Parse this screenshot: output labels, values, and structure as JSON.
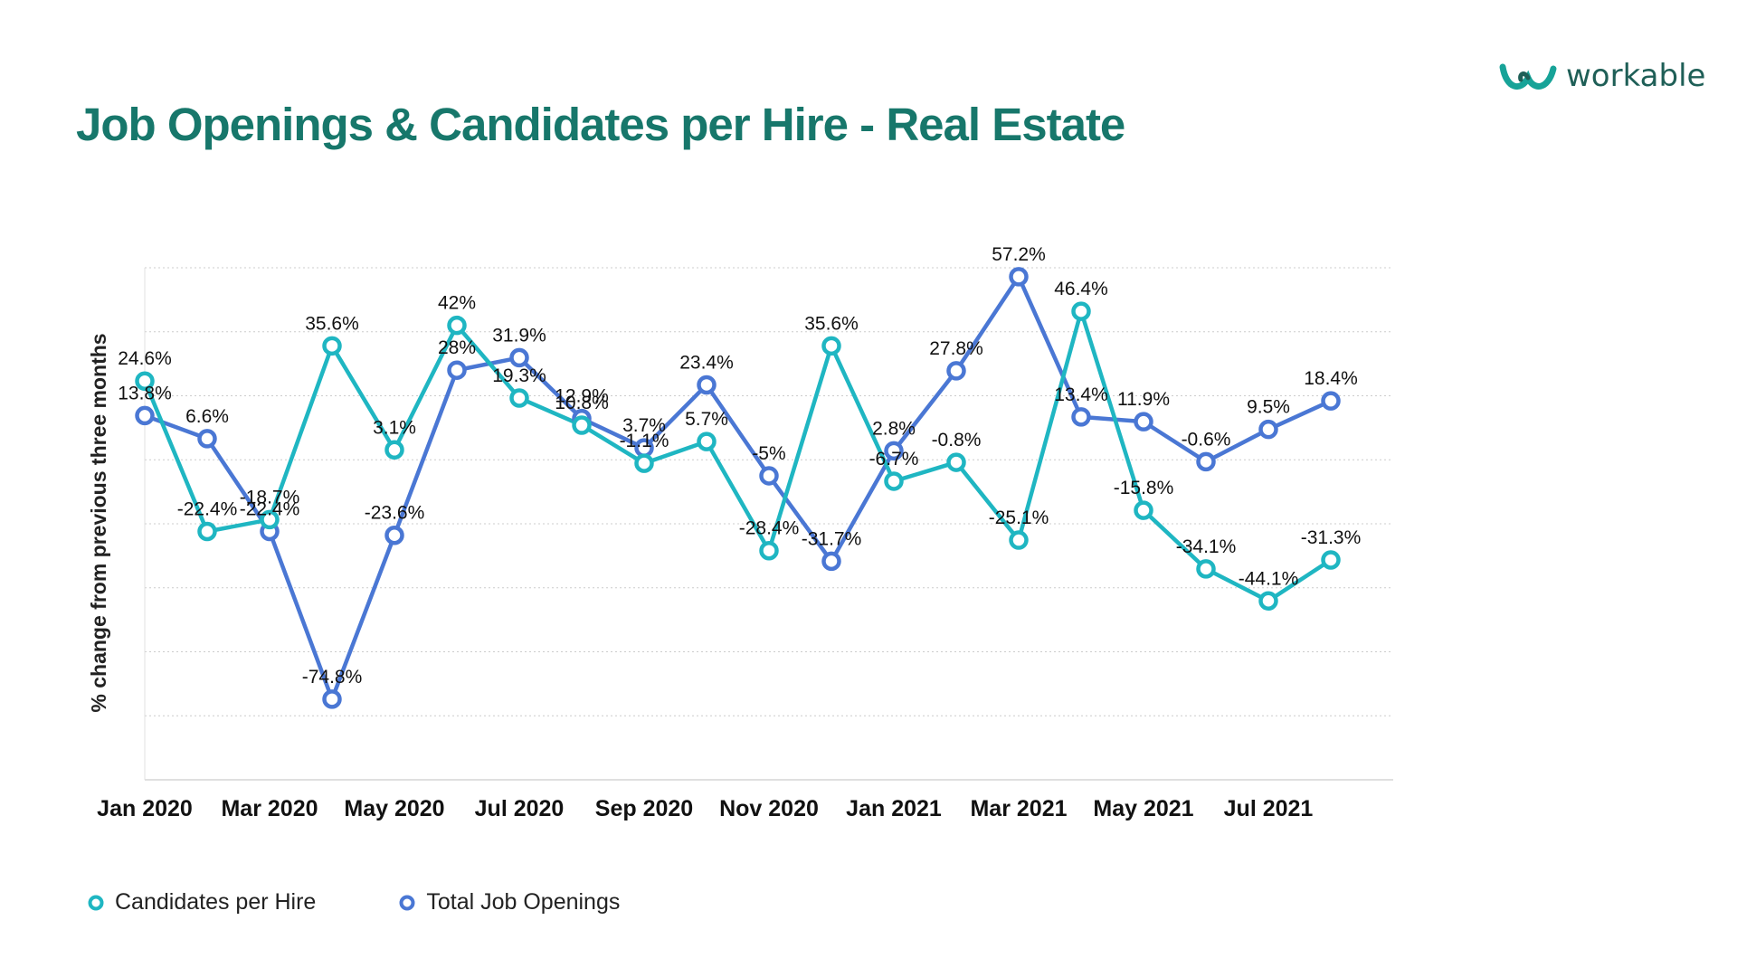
{
  "header": {
    "title": "Job Openings & Candidates per Hire - Real Estate",
    "logo_text": "workable",
    "logo_icon": "workable-logo-icon"
  },
  "colors": {
    "title": "#17776b",
    "candidates": "#1fb6c2",
    "openings": "#4a77d4",
    "grid": "#cccccc"
  },
  "chart_data": {
    "type": "line",
    "title": "Job Openings & Candidates per Hire - Real Estate",
    "xlabel": "",
    "ylabel": "% change from previous three months",
    "ylim": [
      -100,
      60
    ],
    "grid": true,
    "legend_position": "bottom-left",
    "categories": [
      "Jan 2020",
      "Feb 2020",
      "Mar 2020",
      "Apr 2020",
      "May 2020",
      "Jun 2020",
      "Jul 2020",
      "Aug 2020",
      "Sep 2020",
      "Oct 2020",
      "Nov 2020",
      "Dec 2020",
      "Jan 2021",
      "Feb 2021",
      "Mar 2021",
      "Apr 2021",
      "May 2021",
      "Jun 2021",
      "Jul 2021",
      "Aug 2021"
    ],
    "tick_labels": [
      "Jan 2020",
      "Mar 2020",
      "May 2020",
      "Jul 2020",
      "Sep 2020",
      "Nov 2020",
      "Jan 2021",
      "Mar 2021",
      "May 2021",
      "Jul 2021"
    ],
    "series": [
      {
        "name": "Candidates per Hire",
        "values": [
          24.6,
          -22.4,
          -18.7,
          35.6,
          3.1,
          42,
          19.3,
          10.8,
          -1.1,
          5.7,
          -28.4,
          35.6,
          -6.7,
          -0.8,
          -25.1,
          46.4,
          -15.8,
          -34.1,
          -44.1,
          -31.3
        ],
        "labels": [
          "24.6%",
          "-22.4%",
          "-18.7%",
          "35.6%",
          "3.1%",
          "42%",
          "19.3%",
          "10.8%",
          "-1.1%",
          "5.7%",
          "-28.4%",
          "35.6%",
          "-6.7%",
          "-0.8%",
          "-25.1%",
          "46.4%",
          "-15.8%",
          "-34.1%",
          "-44.1%",
          "-31.3%"
        ]
      },
      {
        "name": "Total Job Openings",
        "values": [
          13.8,
          6.6,
          -22.4,
          -74.8,
          -23.6,
          28,
          31.9,
          12.9,
          3.7,
          23.4,
          -5,
          -31.7,
          2.8,
          27.8,
          57.2,
          13.4,
          11.9,
          -0.6,
          9.5,
          18.4
        ],
        "labels": [
          "13.8%",
          "6.6%",
          "-22.4%",
          "-74.8%",
          "-23.6%",
          "28%",
          "31.9%",
          "12.9%",
          "3.7%",
          "23.4%",
          "-5%",
          "-31.7%",
          "2.8%",
          "27.8%",
          "57.2%",
          "13.4%",
          "11.9%",
          "-0.6%",
          "9.5%",
          "18.4%"
        ]
      }
    ]
  },
  "legend": {
    "items": [
      {
        "label": "Candidates per Hire"
      },
      {
        "label": "Total Job Openings"
      }
    ]
  }
}
